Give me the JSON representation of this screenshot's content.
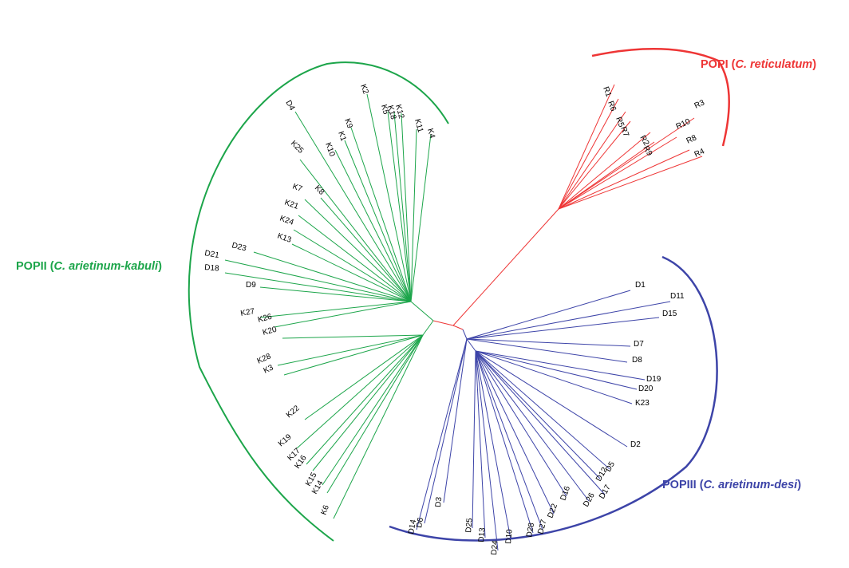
{
  "colors": {
    "popi": "#ee3535",
    "popii": "#1ca54a",
    "popiii": "#3d44a8",
    "root": "#ee3535"
  },
  "groups": {
    "popi": {
      "prefix": "POPI (",
      "italic": "C. reticulatum",
      "suffix": ")"
    },
    "popii": {
      "prefix": "POPII (",
      "italic": "C. arietinum-kabuli",
      "suffix": ")"
    },
    "popiii": {
      "prefix": "POPIII (",
      "italic": "C. arietinum-desi",
      "suffix": ")"
    }
  },
  "clades": [
    {
      "id": "popi",
      "leaves": [
        "R1",
        "R6",
        "R5",
        "R7",
        "R2",
        "R9",
        "R3",
        "R10",
        "R8",
        "R4"
      ]
    },
    {
      "id": "popii",
      "leaves": [
        "D4",
        "K2",
        "K5",
        "K18",
        "K12",
        "K11",
        "K4",
        "K9",
        "K1",
        "K10",
        "K25",
        "K7",
        "K8",
        "K21",
        "K24",
        "K13",
        "D23",
        "D21",
        "D18",
        "D9",
        "K27",
        "K26",
        "K20",
        "K28",
        "K3",
        "K22",
        "K19",
        "K17",
        "K16",
        "K15",
        "K14",
        "K6"
      ]
    },
    {
      "id": "popiii",
      "leaves": [
        "D1",
        "D11",
        "D15",
        "D7",
        "D8",
        "D19",
        "D20",
        "K23",
        "D2",
        "D5",
        "D12",
        "D17",
        "D26",
        "D16",
        "D22",
        "D27",
        "D28",
        "D10",
        "D24",
        "D13",
        "D25",
        "D3",
        "D6",
        "D14"
      ]
    }
  ]
}
